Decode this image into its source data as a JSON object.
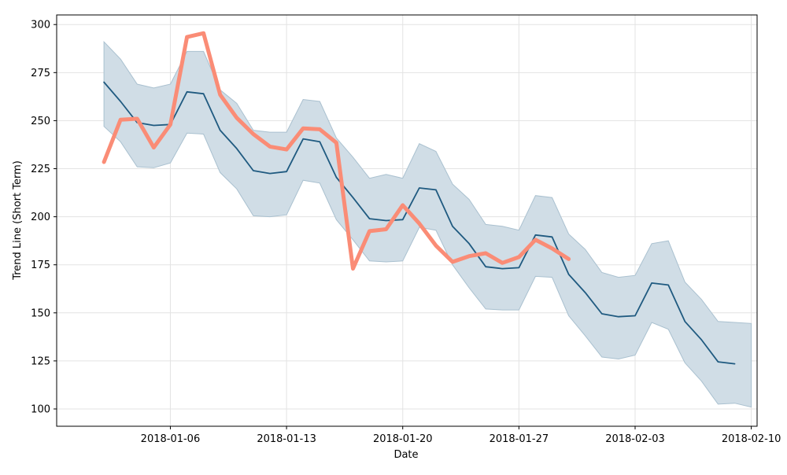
{
  "chart_data": {
    "type": "line",
    "title": "",
    "xlabel": "Date",
    "ylabel": "Trend Line (Short Term)",
    "grid": true,
    "x_tick_labels": [
      "2018-01-06",
      "2018-01-13",
      "2018-01-20",
      "2018-01-27",
      "2018-02-03",
      "2018-02-10"
    ],
    "y_tick_labels": [
      "100",
      "125",
      "150",
      "175",
      "200",
      "225",
      "250",
      "275",
      "300"
    ],
    "y_ticks": [
      100,
      125,
      150,
      175,
      200,
      225,
      250,
      275,
      300
    ],
    "xlim": [
      "2018-01-01",
      "2018-02-10"
    ],
    "ylim": [
      91,
      305
    ],
    "colors": {
      "trend": "#1f5a80",
      "band_fill": "#d0dde6",
      "band_edge": "#a9c0cf",
      "actual": "#fa8c76",
      "grid": "#e3e3e3"
    },
    "series": [
      {
        "role": "trend",
        "x": [
          "2018-01-02",
          "2018-01-03",
          "2018-01-04",
          "2018-01-05",
          "2018-01-06",
          "2018-01-07",
          "2018-01-08",
          "2018-01-09",
          "2018-01-10",
          "2018-01-11",
          "2018-01-12",
          "2018-01-13",
          "2018-01-14",
          "2018-01-15",
          "2018-01-16",
          "2018-01-17",
          "2018-01-18",
          "2018-01-19",
          "2018-01-20",
          "2018-01-21",
          "2018-01-22",
          "2018-01-23",
          "2018-01-24",
          "2018-01-25",
          "2018-01-26",
          "2018-01-27",
          "2018-01-28",
          "2018-01-29",
          "2018-01-30",
          "2018-01-31",
          "2018-02-01",
          "2018-02-02",
          "2018-02-03",
          "2018-02-04",
          "2018-02-05",
          "2018-02-06",
          "2018-02-07",
          "2018-02-08",
          "2018-02-09"
        ],
        "values": [
          270,
          260,
          249,
          247.5,
          248,
          265,
          264,
          245,
          235.5,
          224,
          222.5,
          223.5,
          240.5,
          239,
          220.5,
          210,
          199,
          198,
          198.5,
          215,
          214,
          195,
          186,
          174,
          173,
          173.5,
          190.5,
          189.5,
          170,
          160.5,
          149.5,
          148,
          148.5,
          165.5,
          164.5,
          145.5,
          136,
          124.5,
          123.5
        ]
      },
      {
        "role": "band",
        "x": [
          "2018-01-02",
          "2018-01-03",
          "2018-01-04",
          "2018-01-05",
          "2018-01-06",
          "2018-01-07",
          "2018-01-08",
          "2018-01-09",
          "2018-01-10",
          "2018-01-11",
          "2018-01-12",
          "2018-01-13",
          "2018-01-14",
          "2018-01-15",
          "2018-01-16",
          "2018-01-17",
          "2018-01-18",
          "2018-01-19",
          "2018-01-20",
          "2018-01-21",
          "2018-01-22",
          "2018-01-23",
          "2018-01-24",
          "2018-01-25",
          "2018-01-26",
          "2018-01-27",
          "2018-01-28",
          "2018-01-29",
          "2018-01-30",
          "2018-01-31",
          "2018-02-01",
          "2018-02-02",
          "2018-02-03",
          "2018-02-04",
          "2018-02-05",
          "2018-02-06",
          "2018-02-07",
          "2018-02-08",
          "2018-02-09",
          "2018-02-10"
        ],
        "upper": [
          291,
          282,
          269,
          267,
          269,
          286,
          286,
          266,
          259,
          245,
          244,
          244,
          261,
          260,
          241,
          231,
          220,
          222,
          220,
          238,
          234,
          217,
          209,
          196,
          195,
          193,
          211,
          210,
          191,
          183,
          171,
          168.5,
          169.5,
          186,
          187.5,
          166,
          157,
          145.5,
          145,
          144.5
        ],
        "lower": [
          247,
          239,
          226,
          225.5,
          228,
          243.5,
          243,
          223,
          214.5,
          200.5,
          200,
          201,
          219,
          217.5,
          198.5,
          188,
          177,
          176.5,
          177,
          194.5,
          193,
          175,
          163,
          152,
          151.5,
          151.5,
          169,
          168.5,
          148.5,
          138,
          127,
          126,
          128,
          145,
          141.5,
          124,
          114.5,
          102.5,
          103,
          101
        ]
      },
      {
        "role": "actual",
        "x": [
          "2018-01-02",
          "2018-01-03",
          "2018-01-04",
          "2018-01-05",
          "2018-01-06",
          "2018-01-07",
          "2018-01-08",
          "2018-01-09",
          "2018-01-10",
          "2018-01-11",
          "2018-01-12",
          "2018-01-13",
          "2018-01-14",
          "2018-01-15",
          "2018-01-16",
          "2018-01-17",
          "2018-01-18",
          "2018-01-19",
          "2018-01-20",
          "2018-01-21",
          "2018-01-22",
          "2018-01-23",
          "2018-01-24",
          "2018-01-25",
          "2018-01-26",
          "2018-01-27",
          "2018-01-28",
          "2018-01-29",
          "2018-01-30"
        ],
        "values": [
          228.5,
          250.5,
          251,
          236,
          248,
          293.5,
          295.5,
          263.5,
          251.5,
          243,
          236.5,
          235,
          246,
          245.5,
          238.5,
          173,
          192.5,
          193.5,
          206,
          196.5,
          185,
          176.5,
          179.5,
          181,
          176,
          179,
          188,
          183.5,
          178
        ]
      }
    ]
  }
}
